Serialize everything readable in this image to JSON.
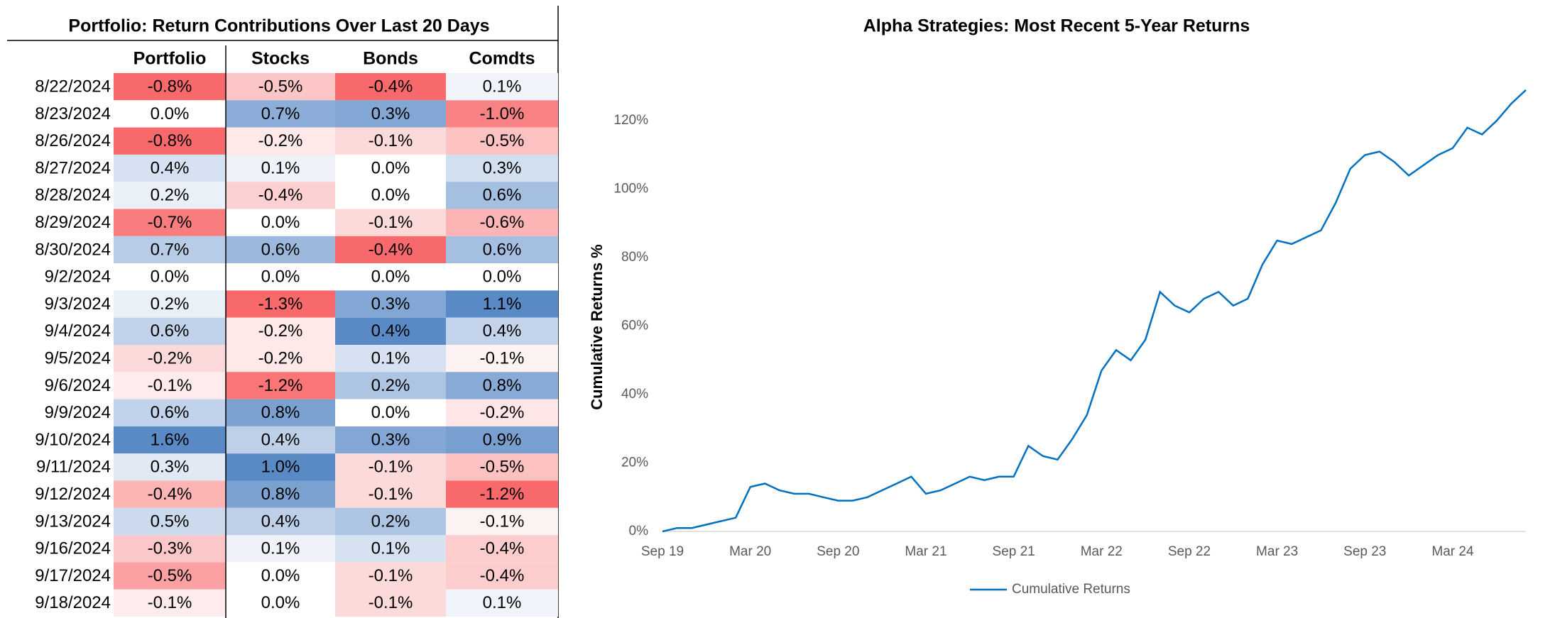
{
  "table": {
    "title": "Portfolio: Return Contributions Over Last 20 Days",
    "columns": [
      "Portfolio",
      "Stocks",
      "Bonds",
      "Comdts"
    ],
    "rows": [
      [
        "8/22/2024",
        "-0.8%",
        "-0.5%",
        "-0.4%",
        "0.1%"
      ],
      [
        "8/23/2024",
        "0.0%",
        "0.7%",
        "0.3%",
        "-1.0%"
      ],
      [
        "8/26/2024",
        "-0.8%",
        "-0.2%",
        "-0.1%",
        "-0.5%"
      ],
      [
        "8/27/2024",
        "0.4%",
        "0.1%",
        "0.0%",
        "0.3%"
      ],
      [
        "8/28/2024",
        "0.2%",
        "-0.4%",
        "0.0%",
        "0.6%"
      ],
      [
        "8/29/2024",
        "-0.7%",
        "0.0%",
        "-0.1%",
        "-0.6%"
      ],
      [
        "8/30/2024",
        "0.7%",
        "0.6%",
        "-0.4%",
        "0.6%"
      ],
      [
        "9/2/2024",
        "0.0%",
        "0.0%",
        "0.0%",
        "0.0%"
      ],
      [
        "9/3/2024",
        "0.2%",
        "-1.3%",
        "0.3%",
        "1.1%"
      ],
      [
        "9/4/2024",
        "0.6%",
        "-0.2%",
        "0.4%",
        "0.4%"
      ],
      [
        "9/5/2024",
        "-0.2%",
        "-0.2%",
        "0.1%",
        "-0.1%"
      ],
      [
        "9/6/2024",
        "-0.1%",
        "-1.2%",
        "0.2%",
        "0.8%"
      ],
      [
        "9/9/2024",
        "0.6%",
        "0.8%",
        "0.0%",
        "-0.2%"
      ],
      [
        "9/10/2024",
        "1.6%",
        "0.4%",
        "0.3%",
        "0.9%"
      ],
      [
        "9/11/2024",
        "0.3%",
        "1.0%",
        "-0.1%",
        "-0.5%"
      ],
      [
        "9/12/2024",
        "-0.4%",
        "0.8%",
        "-0.1%",
        "-1.2%"
      ],
      [
        "9/13/2024",
        "0.5%",
        "0.4%",
        "0.2%",
        "-0.1%"
      ],
      [
        "9/16/2024",
        "-0.3%",
        "0.1%",
        "0.1%",
        "-0.4%"
      ],
      [
        "9/17/2024",
        "-0.5%",
        "0.0%",
        "-0.1%",
        "-0.4%"
      ],
      [
        "9/18/2024",
        "-0.1%",
        "0.0%",
        "-0.1%",
        "0.1%"
      ]
    ],
    "negative_color": "#f8696b",
    "positive_color": "#5a8ac6"
  },
  "chart_data": {
    "type": "line",
    "title": "Alpha Strategies: Most Recent 5-Year Returns",
    "y_label": "Cumulative Returns %",
    "x": [
      "Sep 19",
      null,
      null,
      null,
      null,
      null,
      "Mar 20",
      null,
      null,
      null,
      null,
      null,
      "Sep 20",
      null,
      null,
      null,
      null,
      null,
      "Mar 21",
      null,
      null,
      null,
      null,
      null,
      "Sep 21",
      null,
      null,
      null,
      null,
      null,
      "Mar 22",
      null,
      null,
      null,
      null,
      null,
      "Sep 22",
      null,
      null,
      null,
      null,
      null,
      "Mar 23",
      null,
      null,
      null,
      null,
      null,
      "Sep 23",
      null,
      null,
      null,
      null,
      null,
      "Mar 24",
      null,
      null,
      null,
      null,
      null
    ],
    "series": [
      {
        "name": "Cumulative Returns",
        "color": "#0070c0",
        "values": [
          0,
          1,
          1,
          2,
          3,
          4,
          13,
          14,
          12,
          11,
          11,
          10,
          9,
          9,
          10,
          12,
          14,
          16,
          11,
          12,
          14,
          16,
          15,
          16,
          16,
          25,
          22,
          21,
          27,
          34,
          47,
          53,
          50,
          56,
          70,
          66,
          64,
          68,
          70,
          66,
          68,
          78,
          85,
          84,
          86,
          88,
          96,
          106,
          110,
          111,
          108,
          104,
          107,
          110,
          112,
          118,
          116,
          120,
          125,
          129
        ]
      }
    ],
    "ylim": [
      0,
      130
    ],
    "yticks": [
      {
        "value": 0,
        "label": "0%"
      },
      {
        "value": 20,
        "label": "20%"
      },
      {
        "value": 40,
        "label": "40%"
      },
      {
        "value": 60,
        "label": "60%"
      },
      {
        "value": 80,
        "label": "80%"
      },
      {
        "value": 100,
        "label": "100%"
      },
      {
        "value": 120,
        "label": "120%"
      }
    ],
    "legend": "bottom"
  }
}
